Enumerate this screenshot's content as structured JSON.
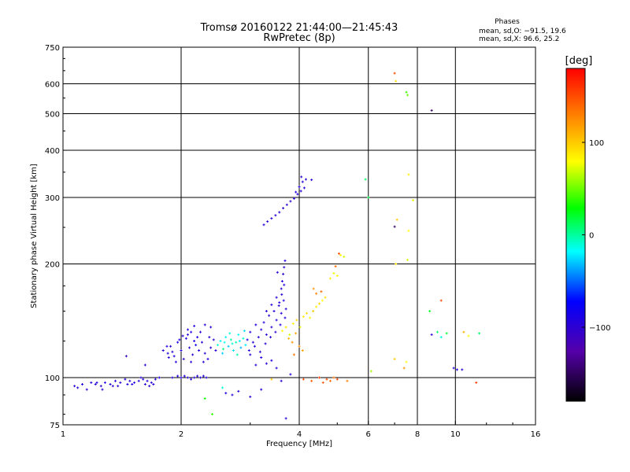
{
  "chart_data": {
    "type": "scatter",
    "title": "Tromsø 20160122 21:44:00—21:45:43",
    "subtitle": "RwPretec (8p)",
    "xlabel": "Frequency [MHz]",
    "ylabel": "Stationary phase Virtual Height [km]",
    "xscale": "log",
    "yscale": "log",
    "xlim": [
      1,
      16
    ],
    "ylim": [
      75,
      750
    ],
    "grid": true,
    "xticks": [
      1,
      2,
      4,
      6,
      8,
      10,
      16
    ],
    "xtick_labels": [
      "1",
      "2",
      "4",
      "6",
      "8",
      "10",
      "16"
    ],
    "yticks": [
      75,
      100,
      200,
      300,
      400,
      500,
      600,
      750
    ],
    "ytick_labels": [
      "75",
      "100",
      "200",
      "300",
      "400",
      "500",
      "600",
      "750"
    ],
    "stats": {
      "heading": "Phases",
      "line_o": "mean, sd,O: −91.5, 19.6",
      "line_x": "mean, sd,X:  96.6, 25.2"
    },
    "colorbar": {
      "label": "[deg]",
      "range": [
        -180,
        180
      ],
      "ticks": [
        100,
        0,
        -100
      ],
      "tick_labels": [
        "100",
        "0",
        "−100"
      ]
    },
    "series": [
      {
        "marker_colors": "phase in degrees (colorbar)",
        "points": [
          [
            1.07,
            95,
            -95
          ],
          [
            1.09,
            94,
            -100
          ],
          [
            1.12,
            96,
            -92
          ],
          [
            1.15,
            93,
            -98
          ],
          [
            1.18,
            97,
            -90
          ],
          [
            1.21,
            96,
            -95
          ],
          [
            1.25,
            95,
            -100
          ],
          [
            1.28,
            97,
            -96
          ],
          [
            1.32,
            96,
            -92
          ],
          [
            1.36,
            98,
            -98
          ],
          [
            1.4,
            97,
            -94
          ],
          [
            1.44,
            99,
            -96
          ],
          [
            1.48,
            98,
            -100
          ],
          [
            1.52,
            97,
            -94
          ],
          [
            1.56,
            98,
            -92
          ],
          [
            1.6,
            99,
            -98
          ],
          [
            1.64,
            98,
            -96
          ],
          [
            1.68,
            97,
            -100
          ],
          [
            1.72,
            99,
            -94
          ],
          [
            1.76,
            100,
            -92
          ],
          [
            1.22,
            97,
            -88
          ],
          [
            1.34,
            95,
            -104
          ],
          [
            1.46,
            96,
            -90
          ],
          [
            1.58,
            100,
            -102
          ],
          [
            1.62,
            96,
            -95
          ],
          [
            1.66,
            95,
            -99
          ],
          [
            1.7,
            96,
            -93
          ],
          [
            1.26,
            93,
            -97
          ],
          [
            1.38,
            95,
            -101
          ],
          [
            1.5,
            96,
            -89
          ],
          [
            1.45,
            114,
            -105
          ],
          [
            1.62,
            108,
            -98
          ],
          [
            1.8,
            118,
            -95
          ],
          [
            1.85,
            116,
            -92
          ],
          [
            1.88,
            121,
            -100
          ],
          [
            1.92,
            114,
            -96
          ],
          [
            1.96,
            124,
            -90
          ],
          [
            2.0,
            118,
            -94
          ],
          [
            2.03,
            112,
            -98
          ],
          [
            2.06,
            127,
            -92
          ],
          [
            2.1,
            120,
            -96
          ],
          [
            2.14,
            115,
            -100
          ],
          [
            2.18,
            122,
            -88
          ],
          [
            2.22,
            118,
            -94
          ],
          [
            2.26,
            124,
            -96
          ],
          [
            2.3,
            116,
            -98
          ],
          [
            2.34,
            112,
            -92
          ],
          [
            2.38,
            120,
            -100
          ],
          [
            2.42,
            126,
            -94
          ],
          [
            2.45,
            118,
            -96
          ],
          [
            1.84,
            121,
            -94
          ],
          [
            1.9,
            117,
            -98
          ],
          [
            1.98,
            126,
            -92
          ],
          [
            2.08,
            130,
            -96
          ],
          [
            2.12,
            110,
            -98
          ],
          [
            2.2,
            128,
            -90
          ],
          [
            2.28,
            110,
            -95
          ],
          [
            2.36,
            128,
            -99
          ],
          [
            1.86,
            113,
            -97
          ],
          [
            1.94,
            110,
            -93
          ],
          [
            2.02,
            129,
            -101
          ],
          [
            2.16,
            125,
            -91
          ],
          [
            2.08,
            134,
            -96
          ],
          [
            2.16,
            137,
            -92
          ],
          [
            2.24,
            132,
            -100
          ],
          [
            2.3,
            138,
            -94
          ],
          [
            2.38,
            136,
            -98
          ],
          [
            2.12,
            132,
            -95
          ],
          [
            1.9,
            100,
            -98
          ],
          [
            1.96,
            101,
            -94
          ],
          [
            2.0,
            100,
            -96
          ],
          [
            2.04,
            101,
            -92
          ],
          [
            2.08,
            100,
            -100
          ],
          [
            2.12,
            99,
            -95
          ],
          [
            2.16,
            100,
            -97
          ],
          [
            2.2,
            101,
            -93
          ],
          [
            2.24,
            100,
            -99
          ],
          [
            2.28,
            101,
            -96
          ],
          [
            2.32,
            100,
            -94
          ],
          [
            2.48,
            122,
            -10
          ],
          [
            2.52,
            125,
            -20
          ],
          [
            2.56,
            119,
            5
          ],
          [
            2.6,
            128,
            -15
          ],
          [
            2.64,
            121,
            -30
          ],
          [
            2.68,
            126,
            0
          ],
          [
            2.72,
            118,
            -25
          ],
          [
            2.76,
            124,
            -5
          ],
          [
            2.8,
            130,
            -18
          ],
          [
            2.84,
            120,
            -35
          ],
          [
            2.88,
            127,
            -8
          ],
          [
            2.92,
            122,
            -22
          ],
          [
            2.55,
            116,
            -28
          ],
          [
            2.66,
            131,
            -12
          ],
          [
            2.78,
            115,
            -3
          ],
          [
            2.9,
            133,
            -26
          ],
          [
            2.58,
            124,
            -16
          ],
          [
            2.7,
            123,
            -9
          ],
          [
            2.82,
            125,
            -21
          ],
          [
            2.95,
            126,
            -90
          ],
          [
            3.0,
            132,
            -95
          ],
          [
            3.05,
            124,
            -98
          ],
          [
            3.1,
            138,
            -92
          ],
          [
            3.15,
            128,
            -96
          ],
          [
            3.2,
            134,
            -100
          ],
          [
            3.25,
            140,
            -94
          ],
          [
            3.3,
            130,
            -96
          ],
          [
            3.35,
            146,
            -92
          ],
          [
            3.4,
            136,
            -98
          ],
          [
            3.45,
            150,
            -94
          ],
          [
            3.5,
            142,
            -96
          ],
          [
            3.55,
            155,
            -100
          ],
          [
            3.6,
            148,
            -92
          ],
          [
            3.65,
            160,
            -95
          ],
          [
            3.7,
            152,
            -98
          ],
          [
            2.98,
            118,
            -97
          ],
          [
            3.08,
            121,
            -93
          ],
          [
            3.18,
            117,
            -99
          ],
          [
            3.28,
            123,
            -91
          ],
          [
            3.38,
            128,
            -96
          ],
          [
            3.48,
            132,
            -100
          ],
          [
            3.58,
            138,
            -94
          ],
          [
            3.68,
            144,
            -96
          ],
          [
            3.3,
            150,
            -98
          ],
          [
            3.4,
            156,
            -92
          ],
          [
            3.5,
            163,
            -96
          ],
          [
            3.6,
            172,
            -100
          ],
          [
            3.62,
            180,
            -94
          ],
          [
            3.64,
            188,
            -96
          ],
          [
            3.66,
            196,
            -98
          ],
          [
            3.68,
            204,
            -92
          ],
          [
            3.66,
            176,
            -95
          ],
          [
            3.61,
            166,
            -99
          ],
          [
            3.56,
            158,
            -93
          ],
          [
            3.52,
            190,
            -97
          ],
          [
            3.25,
            254,
            -95
          ],
          [
            3.32,
            259,
            -100
          ],
          [
            3.4,
            264,
            -96
          ],
          [
            3.48,
            269,
            -92
          ],
          [
            3.56,
            274,
            -98
          ],
          [
            3.64,
            281,
            -94
          ],
          [
            3.72,
            287,
            -96
          ],
          [
            3.8,
            293,
            -100
          ],
          [
            3.88,
            298,
            -92
          ],
          [
            3.96,
            306,
            -96
          ],
          [
            4.04,
            312,
            -98
          ],
          [
            4.12,
            318,
            -94
          ],
          [
            3.92,
            310,
            -90
          ],
          [
            4.0,
            320,
            -97
          ],
          [
            4.08,
            330,
            -93
          ],
          [
            4.16,
            335,
            -99
          ],
          [
            4.3,
            334,
            -96
          ],
          [
            4.05,
            340,
            -100
          ],
          [
            3.3,
            109,
            -96
          ],
          [
            3.4,
            111,
            -94
          ],
          [
            3.5,
            106,
            -98
          ],
          [
            3.2,
            113,
            -92
          ],
          [
            3.1,
            108,
            -96
          ],
          [
            3.0,
            115,
            -100
          ],
          [
            3.62,
            133,
            80
          ],
          [
            3.7,
            136,
            90
          ],
          [
            3.78,
            130,
            70
          ],
          [
            3.86,
            139,
            85
          ],
          [
            3.94,
            142,
            95
          ],
          [
            4.02,
            136,
            75
          ],
          [
            4.1,
            145,
            88
          ],
          [
            4.18,
            148,
            92
          ],
          [
            4.26,
            144,
            80
          ],
          [
            4.34,
            150,
            100
          ],
          [
            4.42,
            154,
            86
          ],
          [
            4.5,
            157,
            95
          ],
          [
            4.58,
            160,
            78
          ],
          [
            4.66,
            163,
            90
          ],
          [
            3.76,
            127,
            110
          ],
          [
            3.84,
            124,
            120
          ],
          [
            3.92,
            131,
            115
          ],
          [
            4.0,
            121,
            125
          ],
          [
            4.08,
            118,
            118
          ],
          [
            3.88,
            115,
            135
          ],
          [
            4.42,
            167,
            130
          ],
          [
            4.55,
            169,
            140
          ],
          [
            4.35,
            172,
            120
          ],
          [
            4.1,
            99,
            150
          ],
          [
            4.3,
            98,
            145
          ],
          [
            4.5,
            100,
            155
          ],
          [
            4.6,
            97,
            148
          ],
          [
            4.7,
            99,
            150
          ],
          [
            4.8,
            98,
            140
          ],
          [
            4.9,
            100,
            135
          ],
          [
            5.0,
            99,
            152
          ],
          [
            5.3,
            98,
            130
          ],
          [
            4.9,
            189,
            75
          ],
          [
            5.0,
            186,
            80
          ],
          [
            4.8,
            183,
            85
          ],
          [
            4.95,
            197,
            140
          ],
          [
            5.05,
            213,
            150
          ],
          [
            5.1,
            211,
            80
          ],
          [
            5.2,
            209,
            70
          ],
          [
            5.9,
            335,
            10
          ],
          [
            6.0,
            300,
            15
          ],
          [
            7.0,
            640,
            150
          ],
          [
            7.05,
            610,
            90
          ],
          [
            7.5,
            570,
            40
          ],
          [
            7.55,
            560,
            50
          ],
          [
            8.7,
            510,
            -150
          ],
          [
            7.6,
            345,
            85
          ],
          [
            7.8,
            295,
            75
          ],
          [
            7.1,
            262,
            100
          ],
          [
            7.0,
            251,
            -150
          ],
          [
            7.6,
            245,
            80
          ],
          [
            7.05,
            200,
            90
          ],
          [
            7.55,
            205,
            70
          ],
          [
            9.2,
            160,
            150
          ],
          [
            8.6,
            150,
            20
          ],
          [
            8.7,
            130,
            -100
          ],
          [
            9.0,
            132,
            10
          ],
          [
            9.2,
            128,
            -10
          ],
          [
            9.5,
            131,
            20
          ],
          [
            10.5,
            132,
            110
          ],
          [
            10.8,
            129,
            80
          ],
          [
            11.5,
            131,
            10
          ],
          [
            7.0,
            112,
            100
          ],
          [
            7.5,
            110,
            80
          ],
          [
            7.4,
            106,
            120
          ],
          [
            6.1,
            104,
            60
          ],
          [
            9.9,
            106,
            -100
          ],
          [
            10.1,
            105,
            -95
          ],
          [
            10.4,
            105,
            -98
          ],
          [
            11.3,
            97,
            160
          ],
          [
            2.3,
            88,
            30
          ],
          [
            2.55,
            94,
            -10
          ],
          [
            2.6,
            91,
            -90
          ],
          [
            2.7,
            90,
            -95
          ],
          [
            2.8,
            92,
            -98
          ],
          [
            3.0,
            89,
            -96
          ],
          [
            3.2,
            93,
            -92
          ],
          [
            3.6,
            98,
            -96
          ],
          [
            3.8,
            102,
            -94
          ],
          [
            2.4,
            80,
            40
          ],
          [
            3.7,
            78,
            -96
          ],
          [
            3.4,
            99,
            100
          ]
        ]
      }
    ]
  }
}
